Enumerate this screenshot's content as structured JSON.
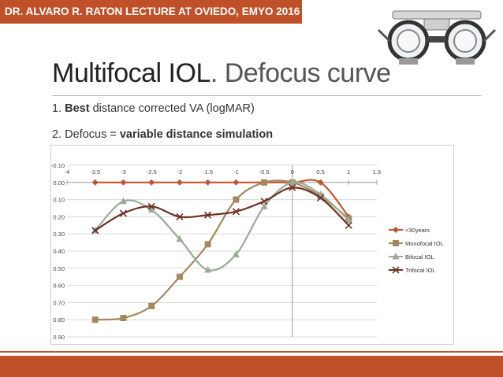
{
  "banner": {
    "text": "DR. ALVARO R. RATON LECTURE AT OVIEDO, EMYO 2016"
  },
  "title": {
    "main": "Multifocal IOL",
    "rest": ". Defocus curve"
  },
  "bullets": [
    {
      "num": "1. ",
      "bold": "Best",
      "rest": " distance corrected VA (logMAR)"
    },
    {
      "num": "2. ",
      "pre": "Defocus = ",
      "bold": "variable distance simulation"
    }
  ],
  "colors": {
    "accent": "#c0502a"
  },
  "chart_data": {
    "type": "line",
    "x_ticks": [
      "-4",
      "-3.5",
      "-3",
      "-2.5",
      "-2",
      "-1.5",
      "-1",
      "-0.5",
      "0",
      "0.5",
      "1",
      "1.5"
    ],
    "y_ticks": [
      "-0.10",
      "0.00",
      "0.10",
      "0.20",
      "0.30",
      "0.40",
      "0.50",
      "0.60",
      "0.70",
      "0.80",
      "0.90"
    ],
    "xlim": [
      -4,
      1.5
    ],
    "ylim": [
      -0.1,
      0.9
    ],
    "y_inverted": true,
    "legend_position": "right",
    "x": [
      -3.5,
      -3,
      -2.5,
      -2,
      -1.5,
      -1,
      -0.5,
      0,
      0.5,
      1
    ],
    "series": [
      {
        "name": "<30years",
        "marker": "diamond",
        "color": "#c0552f",
        "values": [
          0.0,
          0.0,
          0.0,
          0.0,
          0.0,
          0.0,
          0.0,
          0.0,
          0.0,
          0.2
        ]
      },
      {
        "name": "Monofocal IOL",
        "marker": "square",
        "color": "#a3895c",
        "values": [
          0.8,
          0.79,
          0.72,
          0.55,
          0.36,
          0.1,
          0.0,
          0.0,
          0.08,
          0.21
        ]
      },
      {
        "name": "Bifocal IOL",
        "marker": "triangle",
        "color": "#9aab97",
        "values": [
          0.28,
          0.11,
          0.16,
          0.33,
          0.51,
          0.42,
          0.14,
          0.0,
          0.07,
          0.22
        ]
      },
      {
        "name": "Trifocal IOL",
        "marker": "x",
        "color": "#6d3022",
        "values": [
          0.28,
          0.18,
          0.14,
          0.2,
          0.19,
          0.17,
          0.11,
          0.03,
          0.09,
          0.25
        ]
      }
    ]
  }
}
